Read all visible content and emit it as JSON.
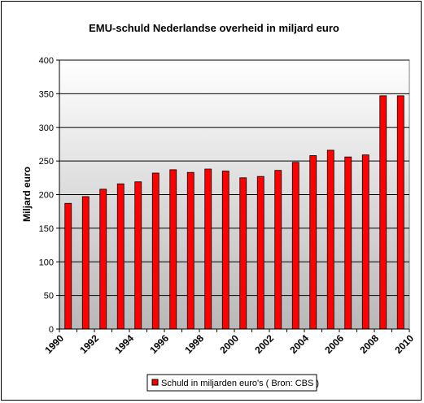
{
  "chart_data": {
    "type": "bar",
    "title": "EMU-schuld Nederlandse overheid in miljard euro",
    "xlabel": "",
    "ylabel": "Miljard euro",
    "ylim": [
      0,
      400
    ],
    "yticks": [
      0,
      50,
      100,
      150,
      200,
      250,
      300,
      350,
      400
    ],
    "grid": true,
    "legend_position": "bottom",
    "categories": [
      "1990",
      "1991",
      "1992",
      "1993",
      "1994",
      "1995",
      "1996",
      "1997",
      "1998",
      "1999",
      "2000",
      "2001",
      "2002",
      "2003",
      "2004",
      "2005",
      "2006",
      "2007",
      "2008",
      "2009"
    ],
    "xtick_labels": [
      "1990",
      "1992",
      "1994",
      "1996",
      "1998",
      "2000",
      "2002",
      "2004",
      "2006",
      "2008",
      "2010"
    ],
    "series": [
      {
        "name": "Schuld in miljarden euro's ( Bron: CBS )",
        "values": [
          187,
          197,
          208,
          216,
          219,
          232,
          237,
          233,
          238,
          235,
          225,
          227,
          236,
          248,
          258,
          266,
          256,
          259,
          347,
          347
        ],
        "color": "#ff0000"
      }
    ]
  },
  "colors": {
    "bar_fill": "#ff0000",
    "bar_stroke": "#000000",
    "plot_top": "#ffffff",
    "plot_bottom": "#b8b8b8",
    "gridline": "#000000"
  }
}
